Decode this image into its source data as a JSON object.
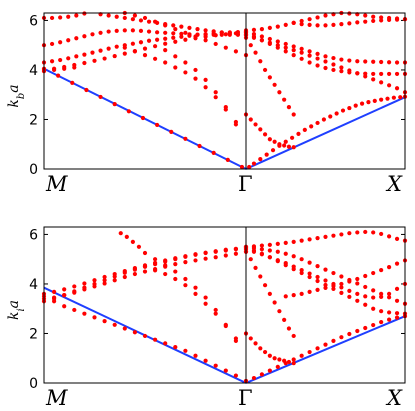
{
  "chart_data": [
    {
      "type": "scatter",
      "title": "",
      "ylabel": "k_b a",
      "ylim": [
        0,
        6.3
      ],
      "yticks": [
        0,
        2,
        4,
        6
      ],
      "x_symmetry_labels": [
        "M",
        "Γ",
        "X"
      ],
      "colors": {
        "points": "#ff0000",
        "line": "#1f3fff"
      },
      "line_series": [
        {
          "x": [
            0,
            1
          ],
          "y": [
            4.05,
            0
          ]
        },
        {
          "x": [
            1,
            2
          ],
          "y": [
            0,
            2.9
          ]
        }
      ],
      "point_series": {
        "x": [
          0.0,
          0.07,
          0.14,
          0.21,
          0.28,
          0.35,
          0.42,
          0.49,
          0.56,
          0.63,
          0.7,
          0.77,
          0.84,
          0.91,
          0.98,
          0.0,
          0.04,
          0.08,
          0.12,
          0.16,
          0.2,
          0.24,
          0.28,
          0.32,
          0.36,
          0.4,
          0.44,
          0.48,
          0.52,
          0.56,
          0.6,
          0.64,
          0.68,
          0.72,
          0.76,
          0.8,
          0.84,
          0.88,
          0.92,
          0.96,
          1.0,
          0.0,
          0.04,
          0.08,
          0.12,
          0.16,
          0.2,
          0.24,
          0.28,
          0.32,
          0.36,
          0.4,
          0.44,
          0.48,
          0.52,
          0.56,
          0.6,
          0.64,
          0.68,
          0.72,
          0.76,
          0.8,
          0.84,
          0.88,
          0.92,
          0.96,
          1.0,
          0.0,
          0.04,
          0.08,
          0.12,
          0.16,
          0.2,
          0.24,
          0.28,
          0.32,
          0.36,
          0.4,
          0.44,
          0.48,
          0.52,
          0.56,
          0.6,
          0.64,
          0.68,
          0.72,
          0.76,
          0.8,
          0.84,
          0.88,
          0.92,
          0.96,
          1.0,
          0.0,
          0.05,
          0.1,
          0.15,
          0.2,
          0.25,
          0.3,
          0.35,
          0.4,
          0.45,
          0.5,
          0.55,
          0.6,
          0.65,
          0.7,
          0.75,
          0.8,
          0.85,
          0.9,
          0.95,
          1.0,
          0.0,
          0.05,
          0.1,
          0.15,
          0.4,
          0.45,
          0.5,
          0.55,
          0.6,
          0.65,
          0.7,
          0.75,
          0.8,
          0.85,
          0.9,
          0.95,
          1.0,
          0.4,
          0.45,
          0.5,
          0.55,
          0.6,
          0.65,
          0.7,
          0.75,
          0.8,
          0.85,
          0.9,
          0.95,
          0.6,
          0.65,
          0.7,
          0.75,
          0.8,
          0.85,
          0.9,
          0.95,
          1.02,
          1.05,
          1.09,
          1.13,
          1.17,
          1.21,
          1.25,
          1.29,
          1.33,
          1.37,
          1.41,
          1.45,
          1.49,
          1.53,
          1.57,
          1.61,
          1.65,
          1.69,
          1.73,
          1.77,
          1.81,
          1.85,
          1.89,
          1.93,
          1.97,
          2.0,
          1.0,
          1.05,
          1.1,
          1.15,
          1.2,
          1.25,
          1.3,
          1.35,
          1.4,
          1.45,
          1.5,
          1.55,
          1.6,
          1.65,
          1.7,
          1.75,
          1.8,
          1.85,
          1.9,
          1.95,
          2.0,
          1.0,
          1.05,
          1.1,
          1.15,
          1.2,
          1.25,
          1.3,
          1.35,
          1.4,
          1.45,
          1.5,
          1.55,
          1.6,
          1.65,
          1.7,
          1.75,
          1.8,
          1.85,
          1.9,
          1.95,
          2.0,
          1.0,
          1.05,
          1.1,
          1.15,
          1.2,
          1.25,
          1.3,
          1.35,
          1.4,
          1.45,
          1.5,
          1.55,
          1.6,
          1.65,
          1.7,
          1.75,
          1.8,
          1.85,
          1.9,
          1.95,
          2.0,
          1.0,
          1.05,
          1.1,
          1.15,
          1.2,
          1.25,
          1.3,
          1.35,
          1.4,
          1.45,
          1.5,
          1.55,
          1.6,
          1.65,
          1.7,
          1.75,
          1.8,
          1.85,
          1.9,
          1.95,
          2.0,
          1.0,
          1.03,
          1.06,
          1.09,
          1.12,
          1.15,
          1.18,
          1.21,
          1.24,
          1.27,
          1.3,
          1.0,
          1.03,
          1.06,
          1.09,
          1.12,
          1.15,
          1.18,
          1.21,
          1.24,
          1.27,
          1.3,
          1.3,
          1.35,
          1.4,
          1.45,
          1.5,
          1.55,
          1.6,
          1.65,
          1.7,
          1.75,
          1.8,
          1.85,
          1.9,
          1.95,
          2.0
        ],
        "y": [
          4.05,
          3.77,
          3.48,
          3.19,
          2.91,
          2.62,
          2.33,
          2.06,
          1.78,
          1.5,
          1.22,
          0.93,
          0.65,
          0.37,
          0.08,
          6.1,
          6.1,
          6.12,
          6.15,
          6.2,
          6.28,
          6.35,
          6.25,
          6.2,
          6.15,
          6.1,
          6.05,
          6.0,
          5.95,
          5.9,
          5.85,
          5.8,
          5.75,
          5.7,
          5.65,
          5.6,
          5.56,
          5.52,
          5.48,
          5.45,
          5.42,
          5.0,
          5.05,
          5.12,
          5.2,
          5.28,
          5.36,
          5.44,
          5.5,
          5.55,
          5.58,
          5.6,
          5.6,
          5.58,
          5.55,
          5.52,
          5.5,
          5.48,
          5.46,
          5.44,
          5.43,
          5.42,
          5.42,
          5.42,
          5.42,
          5.42,
          5.42,
          4.3,
          4.35,
          4.4,
          4.47,
          4.55,
          4.62,
          4.7,
          4.78,
          4.86,
          4.94,
          5.0,
          5.06,
          5.12,
          5.18,
          5.22,
          5.26,
          5.3,
          5.34,
          5.38,
          5.42,
          5.45,
          5.48,
          5.5,
          5.52,
          5.53,
          5.54,
          4.0,
          4.05,
          4.12,
          4.2,
          4.28,
          4.37,
          4.46,
          4.56,
          4.66,
          4.76,
          4.86,
          4.96,
          5.06,
          5.14,
          5.22,
          5.28,
          5.34,
          5.4,
          5.44,
          5.48,
          5.5,
          3.95,
          4.0,
          4.05,
          4.1,
          6.3,
          6.2,
          6.1,
          5.95,
          5.8,
          5.65,
          5.5,
          5.35,
          5.2,
          5.05,
          4.9,
          4.75,
          4.6,
          4.9,
          4.75,
          4.6,
          4.45,
          4.3,
          4.1,
          3.9,
          3.65,
          3.3,
          2.9,
          2.4,
          1.8,
          4.8,
          4.55,
          4.3,
          4.0,
          3.6,
          3.1,
          2.5,
          1.9,
          0.08,
          0.22,
          0.4,
          0.58,
          0.76,
          0.94,
          1.1,
          1.26,
          1.42,
          1.58,
          1.72,
          1.86,
          2.0,
          2.12,
          2.24,
          2.36,
          2.46,
          2.56,
          2.64,
          2.7,
          2.75,
          2.8,
          2.84,
          2.88,
          2.9,
          2.92,
          5.6,
          5.62,
          5.65,
          5.7,
          5.75,
          5.82,
          5.9,
          5.98,
          6.05,
          6.12,
          6.2,
          6.25,
          6.3,
          6.28,
          6.25,
          6.2,
          6.15,
          6.12,
          6.1,
          6.08,
          6.05,
          5.55,
          5.45,
          5.35,
          5.25,
          5.15,
          5.05,
          4.95,
          4.85,
          4.75,
          4.65,
          4.55,
          4.48,
          4.42,
          4.38,
          4.35,
          4.34,
          4.33,
          4.32,
          4.31,
          4.3,
          4.3,
          5.5,
          5.35,
          5.2,
          5.05,
          4.9,
          4.75,
          4.6,
          4.45,
          4.3,
          4.18,
          4.08,
          4.0,
          3.95,
          3.9,
          3.87,
          3.85,
          3.84,
          3.84,
          3.84,
          3.84,
          3.84,
          5.4,
          5.3,
          5.2,
          5.1,
          5.0,
          4.9,
          4.8,
          4.7,
          4.58,
          4.46,
          4.34,
          4.22,
          4.1,
          3.98,
          3.86,
          3.74,
          3.62,
          3.5,
          3.38,
          3.26,
          3.1,
          5.3,
          5.0,
          4.7,
          4.35,
          4.0,
          3.7,
          3.4,
          3.1,
          2.8,
          2.5,
          2.2,
          2.2,
          2.0,
          1.8,
          1.6,
          1.4,
          1.2,
          1.1,
          1.0,
          0.95,
          0.9,
          0.88,
          5.9,
          5.85,
          5.82,
          5.8,
          5.8,
          5.82,
          5.85,
          5.88,
          5.92,
          5.95,
          5.98,
          6.0,
          6.02,
          6.03,
          6.05
        ]
      }
    },
    {
      "type": "scatter",
      "title": "",
      "ylabel": "k_i a",
      "ylim": [
        0,
        6.3
      ],
      "yticks": [
        0,
        2,
        4,
        6
      ],
      "x_symmetry_labels": [
        "M",
        "Γ",
        "X"
      ],
      "colors": {
        "points": "#ff0000",
        "line": "#1f3fff"
      },
      "line_series": [
        {
          "x": [
            0,
            1
          ],
          "y": [
            3.85,
            0
          ]
        },
        {
          "x": [
            1,
            2
          ],
          "y": [
            0,
            2.7
          ]
        }
      ],
      "point_series": {
        "x": [
          0.0,
          0.05,
          0.1,
          0.15,
          0.2,
          0.25,
          0.3,
          0.35,
          0.4,
          0.45,
          0.5,
          0.55,
          0.6,
          0.65,
          0.7,
          0.75,
          0.8,
          0.85,
          0.9,
          0.95,
          1.0,
          0.0,
          0.05,
          0.1,
          0.15,
          0.2,
          0.25,
          0.3,
          0.35,
          0.4,
          0.45,
          0.5,
          0.55,
          0.6,
          0.65,
          0.7,
          0.75,
          0.8,
          0.85,
          0.9,
          0.95,
          1.0,
          0.0,
          0.05,
          0.1,
          0.15,
          0.2,
          0.25,
          0.3,
          0.35,
          0.4,
          0.45,
          0.5,
          0.55,
          0.6,
          0.65,
          0.7,
          0.75,
          0.8,
          0.85,
          0.9,
          0.95,
          1.0,
          0.0,
          0.05,
          0.1,
          0.15,
          0.2,
          0.25,
          0.3,
          0.35,
          0.4,
          0.45,
          0.5,
          0.55,
          0.6,
          0.65,
          0.7,
          0.75,
          0.8,
          0.85,
          0.9,
          0.95,
          1.0,
          0.38,
          0.41,
          0.44,
          0.47,
          0.5,
          0.55,
          0.6,
          0.65,
          0.7,
          0.75,
          0.8,
          0.85,
          0.9,
          0.95,
          0.5,
          0.55,
          0.6,
          0.65,
          0.7,
          0.75,
          0.8,
          0.85,
          0.9,
          0.95,
          1.0,
          1.05,
          1.1,
          1.15,
          1.2,
          1.25,
          1.3,
          1.35,
          1.4,
          1.45,
          1.5,
          1.55,
          1.6,
          1.65,
          1.7,
          1.75,
          1.8,
          1.85,
          1.9,
          1.95,
          2.0,
          1.0,
          1.05,
          1.1,
          1.15,
          1.2,
          1.25,
          1.3,
          1.35,
          1.4,
          1.45,
          1.5,
          1.55,
          1.6,
          1.65,
          1.7,
          1.75,
          1.8,
          1.85,
          1.9,
          1.95,
          2.0,
          1.0,
          1.05,
          1.1,
          1.15,
          1.2,
          1.25,
          1.3,
          1.35,
          1.4,
          1.45,
          1.5,
          1.55,
          1.6,
          1.65,
          1.7,
          1.75,
          1.8,
          1.85,
          1.9,
          1.95,
          2.0,
          1.0,
          1.05,
          1.1,
          1.15,
          1.2,
          1.25,
          1.3,
          1.35,
          1.4,
          1.45,
          1.5,
          1.55,
          1.6,
          1.65,
          1.7,
          1.75,
          1.8,
          1.85,
          1.9,
          1.95,
          2.0,
          1.0,
          1.05,
          1.1,
          1.15,
          1.2,
          1.25,
          1.3,
          1.35,
          1.4,
          1.45,
          1.5,
          1.55,
          1.6,
          1.65,
          1.7,
          1.75,
          1.8,
          1.85,
          1.9,
          1.95,
          2.0,
          1.0,
          1.03,
          1.06,
          1.09,
          1.12,
          1.15,
          1.18,
          1.21,
          1.24,
          1.27,
          1.3,
          1.0,
          1.03,
          1.06,
          1.09,
          1.12,
          1.15,
          1.18,
          1.21,
          1.24,
          1.27,
          1.3,
          1.25,
          1.3,
          1.35,
          1.4,
          1.45,
          1.5,
          1.55,
          1.6,
          1.65,
          1.7,
          1.75,
          1.8,
          1.85,
          1.9,
          1.95,
          2.0
        ],
        "y": [
          3.5,
          3.3,
          3.1,
          2.95,
          2.8,
          2.65,
          2.5,
          2.35,
          2.2,
          2.05,
          1.9,
          1.75,
          1.6,
          1.45,
          1.3,
          1.1,
          0.9,
          0.7,
          0.5,
          0.3,
          0.08,
          3.3,
          3.4,
          3.55,
          3.7,
          3.85,
          4.0,
          4.15,
          4.3,
          4.45,
          4.58,
          4.7,
          4.8,
          4.9,
          5.0,
          5.1,
          5.18,
          5.25,
          5.3,
          5.35,
          5.4,
          5.45,
          3.6,
          3.68,
          3.78,
          3.9,
          4.02,
          4.15,
          4.28,
          4.4,
          4.52,
          4.64,
          4.75,
          4.85,
          4.95,
          5.04,
          5.12,
          5.2,
          5.26,
          5.32,
          5.38,
          5.42,
          5.46,
          3.4,
          3.45,
          3.55,
          3.65,
          3.78,
          3.9,
          4.02,
          4.15,
          4.28,
          4.4,
          4.5,
          4.6,
          4.7,
          4.8,
          4.88,
          4.95,
          5.02,
          5.08,
          5.15,
          5.22,
          5.3,
          6.05,
          5.9,
          5.7,
          5.5,
          5.25,
          5.0,
          4.75,
          4.5,
          4.2,
          3.85,
          3.45,
          2.95,
          2.35,
          1.8,
          4.7,
          4.55,
          4.4,
          4.2,
          3.95,
          3.6,
          3.2,
          2.8,
          2.3,
          1.7,
          0.08,
          0.2,
          0.35,
          0.5,
          0.65,
          0.8,
          0.95,
          1.1,
          1.25,
          1.4,
          1.55,
          1.7,
          1.85,
          1.98,
          2.1,
          2.22,
          2.34,
          2.46,
          2.56,
          2.64,
          2.7,
          5.5,
          5.52,
          5.55,
          5.58,
          5.62,
          5.66,
          5.7,
          5.75,
          5.8,
          5.85,
          5.9,
          5.95,
          6.0,
          6.05,
          6.08,
          6.1,
          6.08,
          6.02,
          5.92,
          5.82,
          5.75,
          5.5,
          5.45,
          5.4,
          5.35,
          5.3,
          5.22,
          5.12,
          5.0,
          4.86,
          4.72,
          4.58,
          4.44,
          4.3,
          4.16,
          4.02,
          3.88,
          3.74,
          3.6,
          3.46,
          3.32,
          3.2,
          5.45,
          5.35,
          5.22,
          5.08,
          4.92,
          4.76,
          4.6,
          4.44,
          4.28,
          4.12,
          3.96,
          3.8,
          3.64,
          3.48,
          3.32,
          3.16,
          3.0,
          2.9,
          2.85,
          2.82,
          2.8,
          5.4,
          5.3,
          5.2,
          5.08,
          4.96,
          4.84,
          4.7,
          4.56,
          4.42,
          4.28,
          4.14,
          4.0,
          3.86,
          3.72,
          3.6,
          3.5,
          3.45,
          3.48,
          3.6,
          3.8,
          4.0,
          5.3,
          5.0,
          4.65,
          4.3,
          3.95,
          3.6,
          3.25,
          2.9,
          2.55,
          2.2,
          1.9,
          2.0,
          1.8,
          1.6,
          1.4,
          1.25,
          1.1,
          1.0,
          0.95,
          0.9,
          0.85,
          0.8,
          3.5,
          3.55,
          3.6,
          3.68,
          3.76,
          3.84,
          3.92,
          4.0,
          4.1,
          4.2,
          4.32,
          4.44,
          4.56,
          4.68,
          4.82,
          4.95
        ]
      }
    }
  ]
}
